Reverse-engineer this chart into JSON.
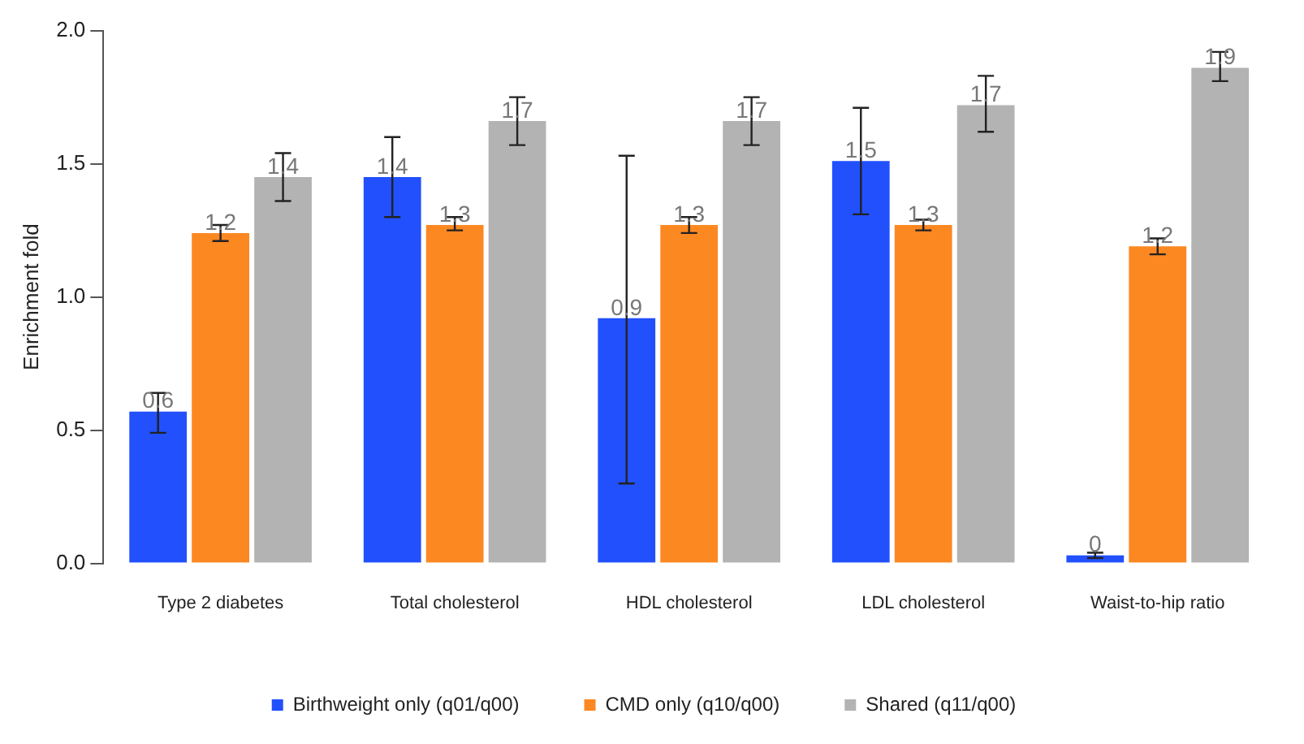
{
  "chart_data": {
    "type": "bar",
    "ylabel": "Enrichment fold",
    "categories": [
      "Type 2 diabetes",
      "Total cholesterol",
      "HDL cholesterol",
      "LDL cholesterol",
      "Waist-to-hip ratio"
    ],
    "ylim": [
      0,
      2
    ],
    "yticks": [
      {
        "value": 0,
        "label": "0.0"
      },
      0.5,
      {
        "value": 1,
        "label": "1.0"
      },
      1.5,
      {
        "value": 2,
        "label": "2.0"
      }
    ],
    "grid": false,
    "legend": "bottom",
    "series": [
      {
        "name": "Birthweight only (q01/q00)",
        "color": "#2250fc",
        "values": [
          0.57,
          1.45,
          0.92,
          1.51,
          0.03
        ],
        "errors": [
          [
            0.49,
            0.64
          ],
          [
            1.3,
            1.6
          ],
          [
            0.3,
            1.53
          ],
          [
            1.31,
            1.71
          ],
          [
            0.02,
            0.04
          ]
        ],
        "value_labels": [
          "0.6",
          "1.4",
          "0.9",
          "1.5",
          "0"
        ]
      },
      {
        "name": "CMD only (q10/q00)",
        "color": "#fc8822",
        "values": [
          1.24,
          1.27,
          1.27,
          1.27,
          1.19
        ],
        "errors": [
          [
            1.21,
            1.27
          ],
          [
            1.25,
            1.3
          ],
          [
            1.24,
            1.3
          ],
          [
            1.25,
            1.29
          ],
          [
            1.16,
            1.22
          ]
        ],
        "value_labels": [
          "1.2",
          "1.3",
          "1.3",
          "1.3",
          "1.2"
        ]
      },
      {
        "name": "Shared (q11/q00)",
        "color": "#b3b3b3",
        "values": [
          1.45,
          1.66,
          1.66,
          1.72,
          1.86
        ],
        "errors": [
          [
            1.36,
            1.54
          ],
          [
            1.57,
            1.75
          ],
          [
            1.57,
            1.75
          ],
          [
            1.62,
            1.83
          ],
          [
            1.81,
            1.92
          ]
        ],
        "value_labels": [
          "1.4",
          "1.7",
          "1.7",
          "1.7",
          "1.9"
        ]
      }
    ]
  }
}
